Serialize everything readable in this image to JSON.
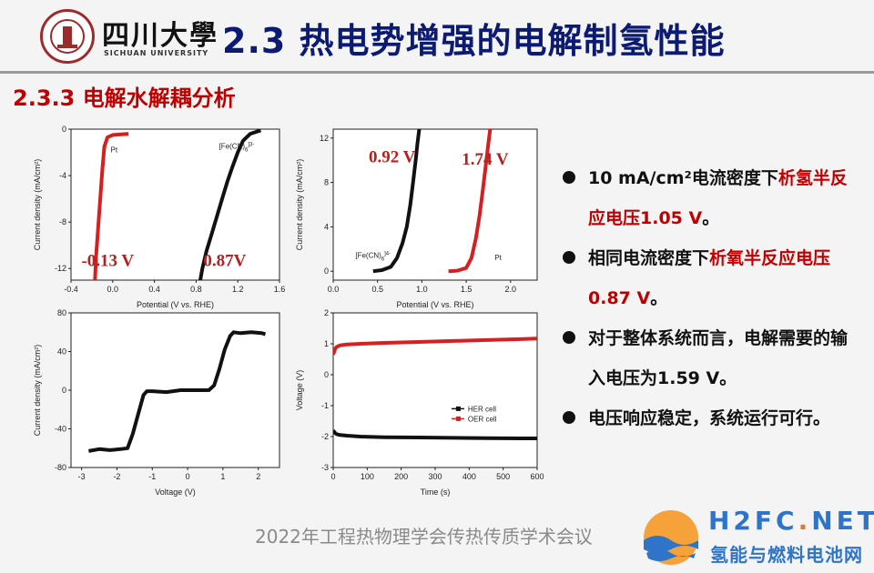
{
  "header": {
    "logo_cn": "四川大學",
    "logo_en": "SICHUAN UNIVERSITY",
    "title": "2.3 热电势增强的电解制氢性能"
  },
  "subtitle": "2.3.3 电解水解耦分析",
  "colors": {
    "red": "#d42020",
    "black": "#111111",
    "title_blue": "#0b1a73",
    "accent_red": "#c00000"
  },
  "bullets": [
    {
      "parts": [
        "10 mA/cm²电流密度下",
        "析氢半反应电压1.05 V",
        "。"
      ]
    },
    {
      "parts": [
        "相同电流密度下",
        "析氧半反应电压0.87 V",
        "。"
      ]
    },
    {
      "parts": [
        "对于整体系统而言，电解需要的输入电压为1.59 V。"
      ]
    },
    {
      "parts": [
        "电压响应稳定，系统运行可行。"
      ]
    }
  ],
  "footer": "2022年工程热物理学会传热传质学术会议",
  "watermark": {
    "en_a": "H2FC",
    "en_dot": ".",
    "en_b": "NET",
    "cn": "氢能与燃料电池网"
  },
  "chart_data": [
    {
      "type": "line",
      "xlabel": "Potential (V vs. RHE)",
      "ylabel": "Current density (mA/cm²)",
      "xlim": [
        -0.4,
        1.6
      ],
      "ylim": [
        -13,
        0
      ],
      "xticks": [
        -0.4,
        0.0,
        0.4,
        0.8,
        1.2,
        1.6
      ],
      "yticks": [
        0,
        -4,
        -8,
        -12
      ],
      "series": [
        {
          "name": "Pt",
          "color": "#d42020",
          "x": [
            -0.17,
            -0.16,
            -0.14,
            -0.12,
            -0.1,
            -0.08,
            -0.05,
            0.0,
            0.08,
            0.15
          ],
          "y": [
            -13.0,
            -11.0,
            -8.5,
            -6.0,
            -3.5,
            -1.5,
            -0.7,
            -0.5,
            -0.45,
            -0.4
          ]
        },
        {
          "name": "[Fe(CN)6]3-",
          "color": "#111111",
          "x": [
            0.84,
            0.86,
            0.9,
            0.95,
            1.0,
            1.05,
            1.1,
            1.15,
            1.2,
            1.25,
            1.32,
            1.42
          ],
          "y": [
            -13.0,
            -12.0,
            -10.5,
            -9.0,
            -7.5,
            -6.0,
            -4.5,
            -3.2,
            -2.0,
            -1.0,
            -0.4,
            -0.1
          ]
        }
      ],
      "labels": [
        {
          "text": "Pt",
          "x": -0.02,
          "y": -2.0
        },
        {
          "text": "[Fe(CN)",
          "sub": "6",
          "sup": "]3-",
          "x": 1.02,
          "y": -1.7
        }
      ],
      "annotations": [
        {
          "text": "-0.13 V",
          "x": -0.3,
          "y": -11.8
        },
        {
          "text": "0.87V",
          "x": 0.87,
          "y": -11.8
        }
      ]
    },
    {
      "type": "line",
      "xlabel": "Potential (V vs. RHE)",
      "ylabel": "Current density (mA/cm²)",
      "xlim": [
        0.0,
        2.3
      ],
      "ylim": [
        -0.8,
        12.8
      ],
      "xticks": [
        0.0,
        0.5,
        1.0,
        1.5,
        2.0
      ],
      "yticks": [
        0,
        4,
        8,
        12
      ],
      "series": [
        {
          "name": "[Fe(CN)6]4-",
          "color": "#111111",
          "x": [
            0.45,
            0.55,
            0.65,
            0.72,
            0.78,
            0.83,
            0.87,
            0.9,
            0.93,
            0.95,
            0.97
          ],
          "y": [
            0.0,
            0.1,
            0.4,
            1.2,
            2.5,
            4.0,
            6.0,
            8.0,
            10.0,
            11.5,
            12.8
          ]
        },
        {
          "name": "Pt",
          "color": "#d42020",
          "x": [
            1.3,
            1.4,
            1.5,
            1.56,
            1.61,
            1.65,
            1.69,
            1.72,
            1.75,
            1.77
          ],
          "y": [
            0.0,
            0.05,
            0.3,
            1.2,
            3.0,
            5.0,
            7.5,
            9.5,
            11.5,
            12.8
          ]
        }
      ],
      "labels": [
        {
          "text": "[Fe(CN)",
          "sub": "6",
          "sup": "]4-",
          "x": 0.25,
          "y": 1.2
        },
        {
          "text": "Pt",
          "x": 1.82,
          "y": 1.0
        }
      ],
      "annotations": [
        {
          "text": "0.92 V",
          "x": 0.4,
          "y": 9.8
        },
        {
          "text": "1.74 V",
          "x": 1.45,
          "y": 9.6
        }
      ]
    },
    {
      "type": "line",
      "xlabel": "Voltage (V)",
      "ylabel": "Current density (mA/cm²)",
      "xlim": [
        -3.3,
        2.6
      ],
      "ylim": [
        -80,
        80
      ],
      "xticks": [
        -3,
        -2,
        -1,
        0,
        1,
        2
      ],
      "yticks": [
        80,
        40,
        0,
        -40,
        -80
      ],
      "series": [
        {
          "name": "",
          "color": "#111111",
          "x": [
            -2.8,
            -2.5,
            -2.2,
            -1.9,
            -1.7,
            -1.55,
            -1.4,
            -1.25,
            -1.15,
            -1.0,
            -0.6,
            -0.2,
            0.2,
            0.6,
            0.75,
            0.9,
            1.05,
            1.2,
            1.3,
            1.5,
            1.8,
            2.1,
            2.2
          ],
          "y": [
            -63,
            -61,
            -62,
            -61,
            -60,
            -45,
            -25,
            -5,
            -1,
            -1,
            -2,
            0,
            0,
            0,
            5,
            22,
            42,
            56,
            60,
            59,
            60,
            59,
            58
          ]
        }
      ]
    },
    {
      "type": "line",
      "xlabel": "Time (s)",
      "ylabel": "Voltage (V)",
      "xlim": [
        0,
        600
      ],
      "ylim": [
        -3,
        2
      ],
      "xticks": [
        0,
        100,
        200,
        300,
        400,
        500,
        600
      ],
      "yticks": [
        2,
        1,
        0,
        -1,
        -2,
        -3
      ],
      "legend": "center-right",
      "series": [
        {
          "name": "HER cell",
          "color": "#111111",
          "x": [
            0,
            5,
            10,
            20,
            40,
            80,
            150,
            250,
            350,
            450,
            550,
            600
          ],
          "y": [
            -1.8,
            -1.88,
            -1.92,
            -1.95,
            -1.97,
            -2.0,
            -2.02,
            -2.03,
            -2.04,
            -2.05,
            -2.06,
            -2.06
          ]
        },
        {
          "name": "OER cell",
          "color": "#d42020",
          "x": [
            0,
            5,
            10,
            20,
            40,
            80,
            150,
            250,
            350,
            450,
            550,
            600
          ],
          "y": [
            0.65,
            0.82,
            0.9,
            0.95,
            0.98,
            1.0,
            1.03,
            1.06,
            1.09,
            1.12,
            1.15,
            1.17
          ]
        }
      ]
    }
  ]
}
